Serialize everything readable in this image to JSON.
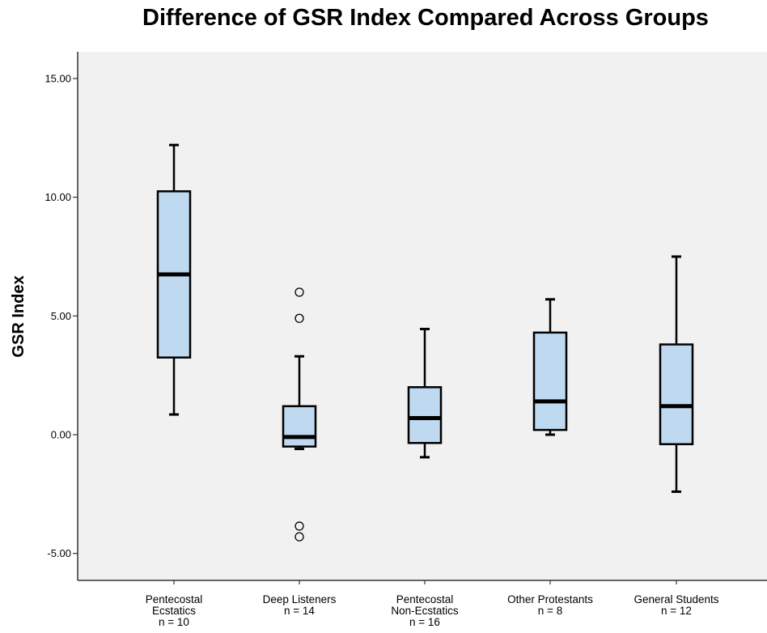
{
  "chart_data": {
    "type": "box",
    "title": "Difference of GSR Index Compared Across Groups",
    "xlabel": "",
    "ylabel": "GSR Index",
    "ylim": [
      -6.0,
      16.0
    ],
    "yticks": [
      -5.0,
      0.0,
      5.0,
      10.0,
      15.0
    ],
    "ytick_labels": [
      "-5.00",
      "0.00",
      "5.00",
      "10.00",
      "15.00"
    ],
    "grid": false,
    "box_color": "#bed9f0",
    "plot_background": "#f1f1f1",
    "groups": [
      {
        "label_lines": [
          "Pentecostal",
          "Ecstatics",
          "n = 10"
        ],
        "whisker_low": 0.85,
        "q1": 3.25,
        "median": 6.75,
        "q3": 10.25,
        "whisker_high": 12.2,
        "outliers": []
      },
      {
        "label_lines": [
          "Deep Listeners",
          "n = 14"
        ],
        "whisker_low": -0.6,
        "q1": -0.5,
        "median": -0.1,
        "q3": 1.2,
        "whisker_high": 3.3,
        "outliers": [
          6.0,
          4.9,
          -3.85,
          -4.3
        ]
      },
      {
        "label_lines": [
          "Pentecostal",
          "Non-Ecstatics",
          "n = 16"
        ],
        "whisker_low": -0.95,
        "q1": -0.35,
        "median": 0.7,
        "q3": 2.0,
        "whisker_high": 4.45,
        "outliers": []
      },
      {
        "label_lines": [
          "Other Protestants",
          "n = 8"
        ],
        "whisker_low": 0.0,
        "q1": 0.2,
        "median": 1.4,
        "q3": 4.3,
        "whisker_high": 5.7,
        "outliers": []
      },
      {
        "label_lines": [
          "General Students",
          "n = 12"
        ],
        "whisker_low": -2.4,
        "q1": -0.4,
        "median": 1.2,
        "q3": 3.8,
        "whisker_high": 7.5,
        "outliers": []
      }
    ]
  }
}
